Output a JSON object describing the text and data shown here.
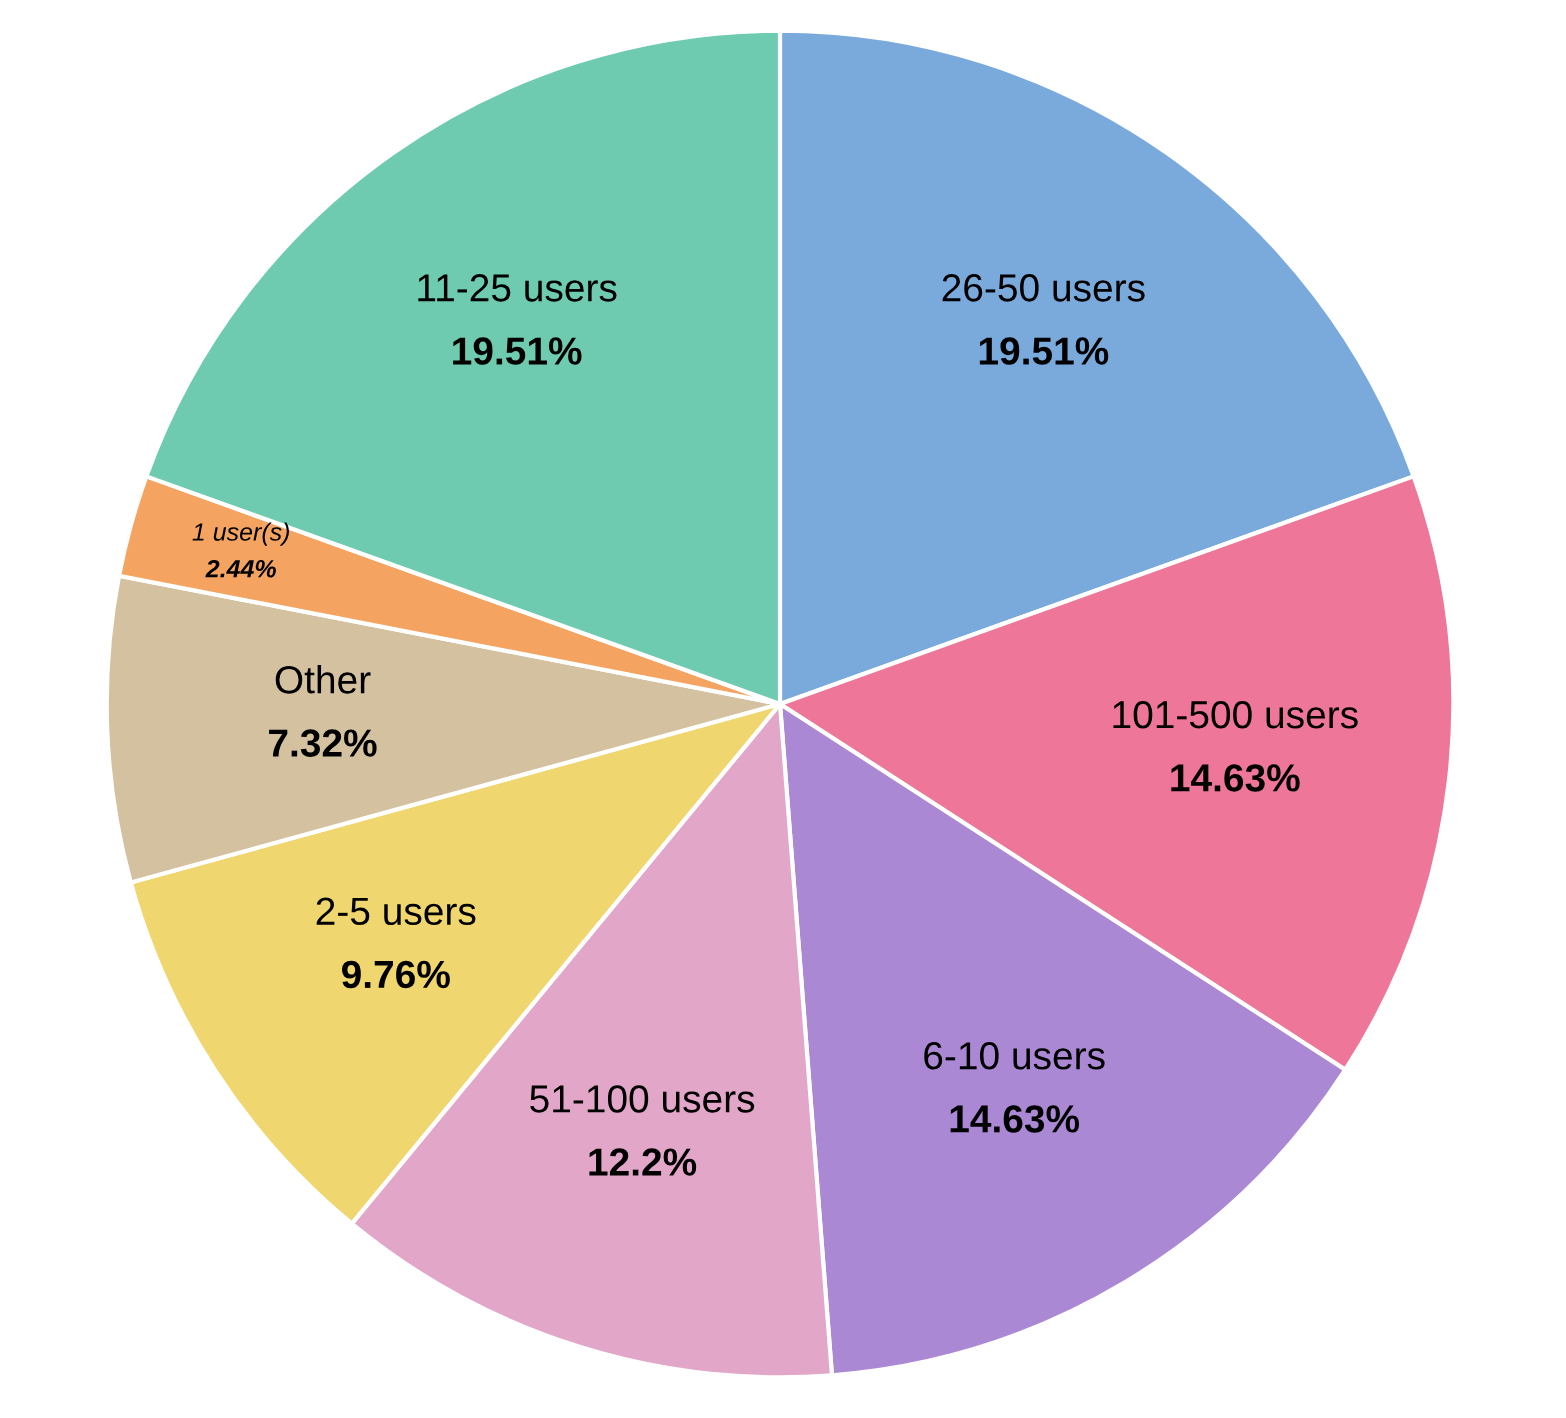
{
  "chart_data": {
    "type": "pie",
    "categories": [
      "26-50 users",
      "101-500 users",
      "6-10 users",
      "51-100 users",
      "2-5 users",
      "Other",
      "1 user(s)",
      "11-25 users"
    ],
    "values": [
      19.51,
      14.63,
      14.63,
      12.2,
      9.76,
      7.32,
      2.44,
      19.51
    ],
    "value_labels": [
      "19.51%",
      "14.63%",
      "14.63%",
      "12.2%",
      "9.76%",
      "7.32%",
      "2.44%",
      "19.51%"
    ],
    "colors": [
      "#7aaadc",
      "#ee7799",
      "#aa88d4",
      "#e2a6c8",
      "#f0d66e",
      "#d3c1a0",
      "#f4a460",
      "#6ecbb0"
    ]
  }
}
